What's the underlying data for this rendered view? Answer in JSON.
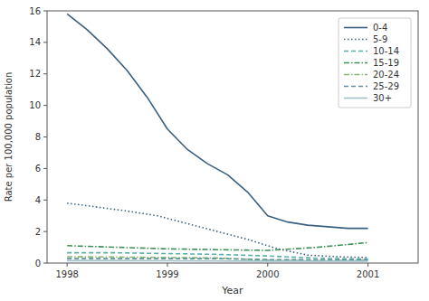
{
  "chart_data": {
    "type": "line",
    "xlabel": "Year",
    "ylabel": "Rate per 100,000 population",
    "xlim": [
      1997.8,
      2001.5
    ],
    "ylim": [
      0,
      16
    ],
    "xticks": [
      1998,
      1999,
      2000,
      2001
    ],
    "yticks": [
      0,
      2,
      4,
      6,
      8,
      10,
      12,
      14,
      16
    ],
    "grid": false,
    "legend": "upper right",
    "series": [
      {
        "name": "0-4",
        "color": "#3a6080",
        "line_style": "solid",
        "x": [
          1998,
          1998.2,
          1998.4,
          1998.6,
          1998.8,
          1999.0,
          1999.2,
          1999.4,
          1999.6,
          1999.8,
          2000.0,
          2000.2,
          2000.4,
          2000.6,
          2000.8,
          2001.0
        ],
        "values": [
          15.8,
          14.8,
          13.6,
          12.2,
          10.5,
          8.5,
          7.2,
          6.3,
          5.6,
          4.5,
          3.0,
          2.6,
          2.4,
          2.3,
          2.2,
          2.2
        ]
      },
      {
        "name": "5-9",
        "color": "#3a6080",
        "line_style": "dotted",
        "x": [
          1998,
          1998.3,
          1998.6,
          1998.9,
          1999.2,
          1999.5,
          1999.8,
          2000.1,
          2000.4,
          2000.7,
          2001.0
        ],
        "values": [
          3.8,
          3.55,
          3.3,
          3.0,
          2.5,
          2.0,
          1.5,
          0.9,
          0.5,
          0.4,
          0.35
        ]
      },
      {
        "name": "10-14",
        "color": "#5ab0a8",
        "line_style": "dashed",
        "x": [
          1998,
          1998.5,
          1999.0,
          1999.5,
          2000.0,
          2000.5,
          2001.0
        ],
        "values": [
          0.65,
          0.65,
          0.6,
          0.55,
          0.45,
          0.3,
          0.25
        ]
      },
      {
        "name": "15-19",
        "color": "#40905a",
        "line_style": "dashdot",
        "x": [
          1998,
          1998.5,
          1999.0,
          1999.5,
          2000.0,
          2000.5,
          2001.0
        ],
        "values": [
          1.1,
          1.0,
          0.9,
          0.85,
          0.8,
          1.0,
          1.3
        ]
      },
      {
        "name": "20-24",
        "color": "#88b870",
        "line_style": "dashdot",
        "x": [
          1998,
          1998.5,
          1999.0,
          1999.5,
          2000.0,
          2000.5,
          2001.0
        ],
        "values": [
          0.4,
          0.38,
          0.35,
          0.32,
          0.18,
          0.15,
          0.18
        ]
      },
      {
        "name": "25-29",
        "color": "#6090a0",
        "line_style": "dashed",
        "x": [
          1998,
          1998.5,
          1999.0,
          1999.5,
          2000.0,
          2000.5,
          2001.0
        ],
        "values": [
          0.28,
          0.28,
          0.28,
          0.28,
          0.22,
          0.2,
          0.2
        ]
      },
      {
        "name": "30+",
        "color": "#a0c0c8",
        "line_style": "solid",
        "x": [
          1998,
          1998.5,
          1999.0,
          1999.5,
          2000.0,
          2000.5,
          2001.0
        ],
        "values": [
          0.15,
          0.15,
          0.14,
          0.13,
          0.12,
          0.12,
          0.12
        ]
      }
    ]
  }
}
